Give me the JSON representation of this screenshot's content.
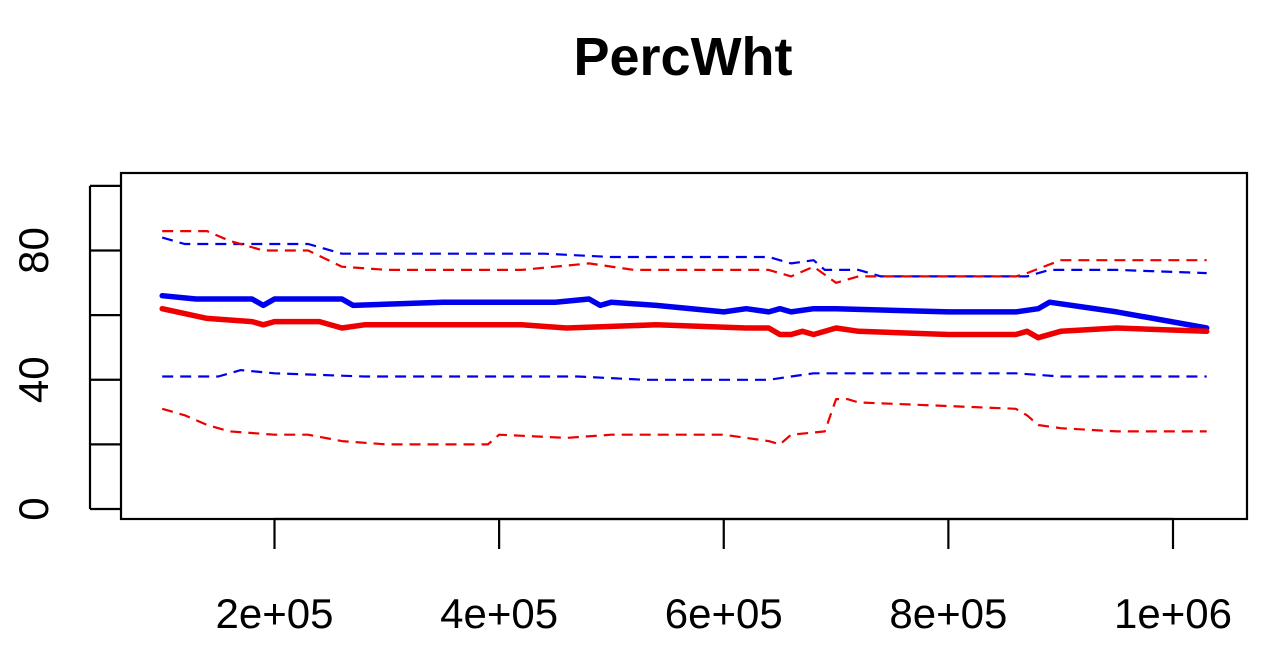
{
  "chart_data": {
    "type": "line",
    "title": "PercWht",
    "xlabel": "",
    "ylabel": "",
    "xlim": [
      50000,
      1050000
    ],
    "ylim": [
      0,
      100
    ],
    "x_ticks": [
      200000,
      400000,
      600000,
      800000,
      1000000
    ],
    "x_tick_labels": [
      "2e+05",
      "4e+05",
      "6e+05",
      "8e+05",
      "1e+06"
    ],
    "y_ticks": [
      0,
      40,
      80
    ],
    "y_tick_labels": [
      "0",
      "40",
      "80"
    ],
    "y_minor_ticks": [
      20,
      60,
      100
    ],
    "grid": false,
    "legend": "none",
    "series": [
      {
        "color": "#0000ee",
        "style": "solid",
        "x": [
          100000,
          130000,
          180000,
          190000,
          200000,
          260000,
          270000,
          350000,
          450000,
          480000,
          490000,
          500000,
          540000,
          600000,
          620000,
          640000,
          650000,
          660000,
          680000,
          700000,
          800000,
          860000,
          880000,
          890000,
          950000,
          1030000
        ],
        "y": [
          66,
          65,
          65,
          63,
          65,
          65,
          63,
          64,
          64,
          65,
          63,
          64,
          63,
          61,
          62,
          61,
          62,
          61,
          62,
          62,
          61,
          61,
          62,
          64,
          61,
          56
        ]
      },
      {
        "color": "#ee0000",
        "style": "solid",
        "x": [
          100000,
          140000,
          180000,
          190000,
          200000,
          240000,
          260000,
          280000,
          340000,
          420000,
          460000,
          540000,
          620000,
          640000,
          650000,
          660000,
          670000,
          680000,
          700000,
          720000,
          800000,
          860000,
          870000,
          880000,
          900000,
          950000,
          1030000
        ],
        "y": [
          62,
          59,
          58,
          57,
          58,
          58,
          56,
          57,
          57,
          57,
          56,
          57,
          56,
          56,
          54,
          54,
          55,
          54,
          56,
          55,
          54,
          54,
          55,
          53,
          55,
          56,
          55
        ]
      },
      {
        "color": "#0000ee",
        "style": "dashed",
        "x": [
          100000,
          120000,
          230000,
          260000,
          440000,
          500000,
          640000,
          660000,
          680000,
          690000,
          720000,
          740000,
          870000,
          890000,
          950000,
          1030000
        ],
        "y": [
          84,
          82,
          82,
          79,
          79,
          78,
          78,
          76,
          77,
          74,
          74,
          72,
          72,
          74,
          74,
          73
        ],
        "range_role": "upper"
      },
      {
        "color": "#0000ee",
        "style": "dashed",
        "x": [
          100000,
          150000,
          170000,
          200000,
          280000,
          470000,
          530000,
          600000,
          640000,
          660000,
          680000,
          700000,
          860000,
          900000,
          1030000
        ],
        "y": [
          41,
          41,
          43,
          42,
          41,
          41,
          40,
          40,
          40,
          41,
          42,
          42,
          42,
          41,
          41
        ],
        "range_role": "lower"
      },
      {
        "color": "#ee0000",
        "style": "dashed",
        "x": [
          100000,
          140000,
          160000,
          190000,
          230000,
          260000,
          300000,
          420000,
          480000,
          520000,
          640000,
          660000,
          680000,
          700000,
          720000,
          860000,
          870000,
          900000,
          1030000
        ],
        "y": [
          86,
          86,
          83,
          80,
          80,
          75,
          74,
          74,
          76,
          74,
          74,
          72,
          75,
          70,
          72,
          72,
          73,
          77,
          77
        ],
        "range_role": "upper"
      },
      {
        "color": "#ee0000",
        "style": "dashed",
        "x": [
          100000,
          120000,
          140000,
          160000,
          200000,
          230000,
          260000,
          300000,
          390000,
          400000,
          460000,
          500000,
          600000,
          640000,
          650000,
          660000,
          690000,
          700000,
          710000,
          720000,
          860000,
          870000,
          880000,
          900000,
          950000,
          1030000
        ],
        "y": [
          31,
          29,
          26,
          24,
          23,
          23,
          21,
          20,
          20,
          23,
          22,
          23,
          23,
          21,
          20,
          23,
          24,
          34,
          34,
          33,
          31,
          29,
          26,
          25,
          24,
          24
        ],
        "range_role": "lower"
      }
    ]
  }
}
